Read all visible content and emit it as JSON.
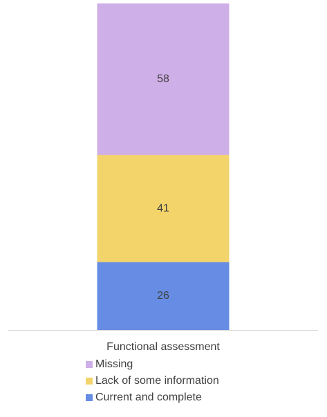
{
  "chart_data": {
    "type": "stacked_bar",
    "categories": [
      "Functional assessment"
    ],
    "series": [
      {
        "name": "Current and complete",
        "color": "#668de3",
        "values": [
          26
        ]
      },
      {
        "name": "Lack of some information",
        "color": "#f3d46b",
        "values": [
          41
        ]
      },
      {
        "name": "Missing",
        "color": "#cfafe8",
        "values": [
          58
        ]
      }
    ],
    "data_labels": true,
    "legend": "bottom"
  }
}
